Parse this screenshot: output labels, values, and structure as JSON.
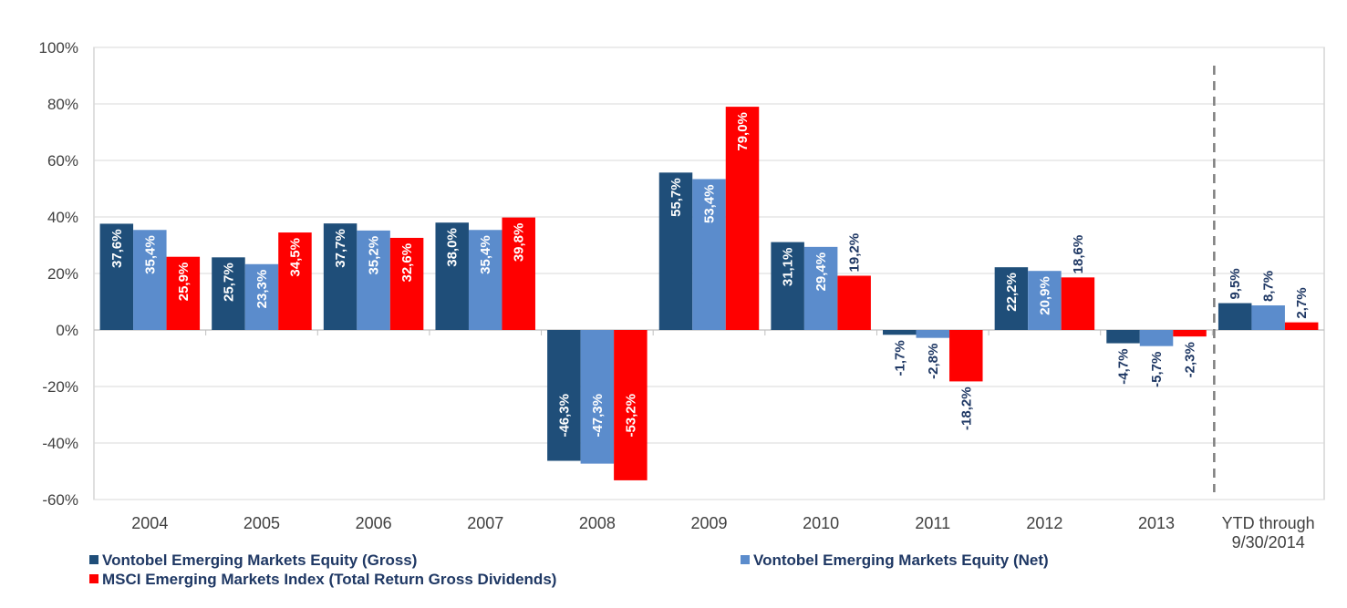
{
  "chart_data": {
    "type": "bar",
    "title": "",
    "xlabel": "",
    "ylabel": "",
    "ylim": [
      -60,
      100
    ],
    "yticks": [
      100,
      80,
      60,
      40,
      20,
      0,
      -20,
      -40,
      -60
    ],
    "ytick_labels": [
      "100%",
      "80%",
      "60%",
      "40%",
      "20%",
      "0%",
      "-20%",
      "-40%",
      "-60%"
    ],
    "categories": [
      "2004",
      "2005",
      "2006",
      "2007",
      "2008",
      "2009",
      "2010",
      "2011",
      "2012",
      "2013",
      "YTD through 9/30/2014"
    ],
    "category_lines": [
      [
        "2004"
      ],
      [
        "2005"
      ],
      [
        "2006"
      ],
      [
        "2007"
      ],
      [
        "2008"
      ],
      [
        "2009"
      ],
      [
        "2010"
      ],
      [
        "2011"
      ],
      [
        "2012"
      ],
      [
        "2013"
      ],
      [
        "YTD through",
        "9/30/2014"
      ]
    ],
    "series": [
      {
        "name": "Vontobel Emerging Markets Equity (Gross)",
        "color": "#1f4e79",
        "values": [
          37.6,
          25.7,
          37.7,
          38.0,
          -46.3,
          55.7,
          31.1,
          -1.7,
          22.2,
          -4.7,
          9.5
        ],
        "labels": [
          "37,6%",
          "25,7%",
          "37,7%",
          "38,0%",
          "-46,3%",
          "55,7%",
          "31,1%",
          "-1,7%",
          "22,2%",
          "-4,7%",
          "9,5%"
        ]
      },
      {
        "name": "Vontobel Emerging Markets Equity (Net)",
        "color": "#5b8ccc",
        "values": [
          35.4,
          23.3,
          35.2,
          35.4,
          -47.3,
          53.4,
          29.4,
          -2.8,
          20.9,
          -5.7,
          8.7
        ],
        "labels": [
          "35,4%",
          "23,3%",
          "35,2%",
          "35,4%",
          "-47,3%",
          "53,4%",
          "29,4%",
          "-2,8%",
          "20,9%",
          "-5,7%",
          "8,7%"
        ]
      },
      {
        "name": "MSCI Emerging Markets Index (Total Return Gross Dividends)",
        "color": "#ff0000",
        "values": [
          25.9,
          34.5,
          32.6,
          39.8,
          -53.2,
          79.0,
          19.2,
          -18.2,
          18.6,
          -2.3,
          2.7
        ],
        "labels": [
          "25,9%",
          "34,5%",
          "32,6%",
          "39,8%",
          "-53,2%",
          "79,0%",
          "19,2%",
          "-18,2%",
          "18,6%",
          "-2,3%",
          "2,7%"
        ]
      }
    ],
    "grid": true,
    "separator_before_category": "YTD through 9/30/2014",
    "legend_position": "bottom"
  }
}
